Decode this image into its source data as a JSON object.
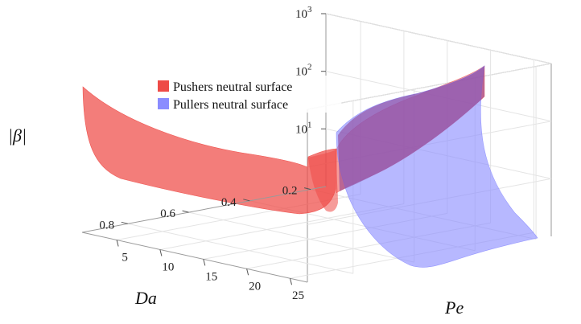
{
  "chart_data": {
    "type": "surface3d",
    "axes": {
      "x": {
        "label": "Da",
        "ticks": [
          "0.2",
          "0.4",
          "0.6",
          "0.8"
        ],
        "values": [
          0.2,
          0.4,
          0.6,
          0.8
        ],
        "range": [
          0.15,
          0.95
        ]
      },
      "y": {
        "label": "Pe",
        "ticks": [
          "5",
          "10",
          "15",
          "20",
          "25"
        ],
        "values": [
          5,
          10,
          15,
          20,
          25
        ],
        "range": [
          1,
          27
        ]
      },
      "z": {
        "label": "|β|",
        "scale": "log",
        "ticks": [
          "10",
          "10",
          "10"
        ],
        "tick_exponents": [
          "1",
          "2",
          "3"
        ],
        "values": [
          10,
          100,
          1000
        ],
        "range": [
          1,
          1000
        ]
      }
    },
    "legend": {
      "placement": "top-center",
      "entries": [
        {
          "label": "Pushers neutral surface",
          "color": "#ee4b47"
        },
        {
          "label": "Pullers neutral surface",
          "color": "#8a8cff"
        }
      ]
    },
    "series": [
      {
        "name": "Pushers neutral surface",
        "color": "#ee4b47",
        "surface": {
          "Da_edge_small_Pe": [
            0.18,
            0.3,
            0.45,
            0.6,
            0.75,
            0.92
          ],
          "abs_beta_along_Da_at_Pe_min": [
            900,
            120,
            25,
            10,
            6,
            5
          ],
          "abs_beta_along_Pe_at_Da_max": [
            5,
            8,
            30,
            300,
            1000
          ]
        }
      },
      {
        "name": "Pullers neutral surface",
        "color": "#8a8cff",
        "surface": {
          "Pe_edge": [
            5,
            10,
            15,
            20,
            25
          ],
          "abs_beta_along_Pe_at_Da_max": [
            400,
            60,
            15,
            6,
            4
          ]
        }
      }
    ]
  }
}
